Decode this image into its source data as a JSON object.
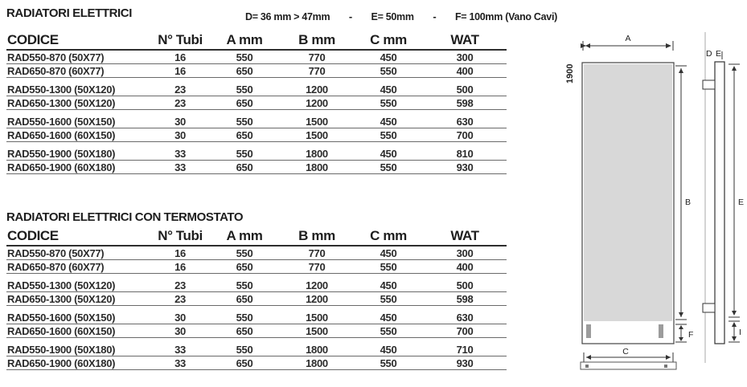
{
  "header": {
    "dims": {
      "d": "D= 36 mm > 47mm",
      "sep1": "-",
      "e": "E= 50mm",
      "sep2": "-",
      "f": "F= 100mm (Vano Cavi)"
    }
  },
  "tables": [
    {
      "title": "RADIATORI ELETTRICI",
      "columns": [
        "CODICE",
        "N° Tubi",
        "A mm",
        "B mm",
        "C mm",
        "WAT"
      ],
      "row_groups": [
        [
          [
            "RAD550-870 (50X77)",
            "16",
            "550",
            "770",
            "450",
            "300"
          ],
          [
            "RAD650-870 (60X77)",
            "16",
            "650",
            "770",
            "550",
            "400"
          ]
        ],
        [
          [
            "RAD550-1300 (50X120)",
            "23",
            "550",
            "1200",
            "450",
            "500"
          ],
          [
            "RAD650-1300 (50X120)",
            "23",
            "650",
            "1200",
            "550",
            "598"
          ]
        ],
        [
          [
            "RAD550-1600 (50X150)",
            "30",
            "550",
            "1500",
            "450",
            "630"
          ],
          [
            "RAD650-1600 (60X150)",
            "30",
            "650",
            "1500",
            "550",
            "700"
          ]
        ],
        [
          [
            "RAD550-1900 (50X180)",
            "33",
            "550",
            "1800",
            "450",
            "810"
          ],
          [
            "RAD650-1900 (60X180)",
            "33",
            "650",
            "1800",
            "550",
            "930"
          ]
        ]
      ]
    },
    {
      "title": "RADIATORI ELETTRICI CON TERMOSTATO",
      "columns": [
        "CODICE",
        "N° Tubi",
        "A mm",
        "B mm",
        "C mm",
        "WAT"
      ],
      "row_groups": [
        [
          [
            "RAD550-870 (50X77)",
            "16",
            "550",
            "770",
            "450",
            "300"
          ],
          [
            "RAD650-870 (60X77)",
            "16",
            "650",
            "770",
            "550",
            "400"
          ]
        ],
        [
          [
            "RAD550-1300 (50X120)",
            "23",
            "550",
            "1200",
            "450",
            "500"
          ],
          [
            "RAD650-1300 (50X120)",
            "23",
            "650",
            "1200",
            "550",
            "598"
          ]
        ],
        [
          [
            "RAD550-1600 (50X150)",
            "30",
            "550",
            "1500",
            "450",
            "630"
          ],
          [
            "RAD650-1600 (60X150)",
            "30",
            "650",
            "1500",
            "550",
            "700"
          ]
        ],
        [
          [
            "RAD550-1900 (50X180)",
            "33",
            "550",
            "1800",
            "450",
            "710"
          ],
          [
            "RAD650-1900 (60X180)",
            "33",
            "650",
            "1800",
            "550",
            "930"
          ]
        ]
      ]
    }
  ],
  "diagram": {
    "front_view": {
      "total_height_label": "1900",
      "width_label": "A",
      "height_label": "B",
      "cable_label": "F",
      "bracket_label": "C"
    },
    "side_view": {
      "depth_label": "D",
      "offset_label": "E",
      "height_label": "E",
      "bottom_label": "I"
    }
  }
}
